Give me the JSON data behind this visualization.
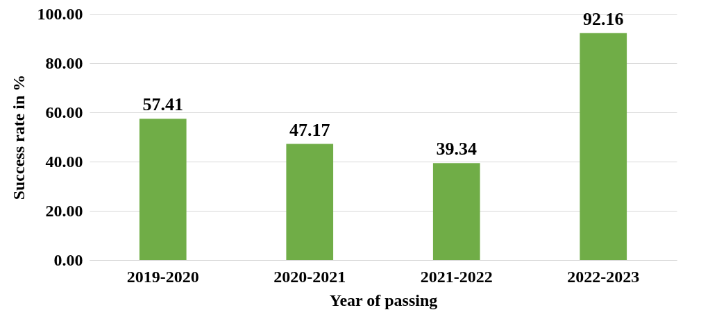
{
  "chart_data": {
    "type": "bar",
    "xlabel": "Year of passing",
    "ylabel": "Success rate in %",
    "categories": [
      "2019-2020",
      "2020-2021",
      "2021-2022",
      "2022-2023"
    ],
    "values": [
      57.41,
      47.17,
      39.34,
      92.16
    ],
    "color": "#70ad47",
    "ylim": [
      0,
      100
    ],
    "yticks": [
      {
        "value": 0,
        "label": "0.00"
      },
      {
        "value": 20,
        "label": "20.00"
      },
      {
        "value": 40,
        "label": "40.00"
      },
      {
        "value": 60,
        "label": "60.00"
      },
      {
        "value": 80,
        "label": "80.00"
      },
      {
        "value": 100,
        "label": "100.00"
      }
    ],
    "grid": "y",
    "data_labels": true
  }
}
